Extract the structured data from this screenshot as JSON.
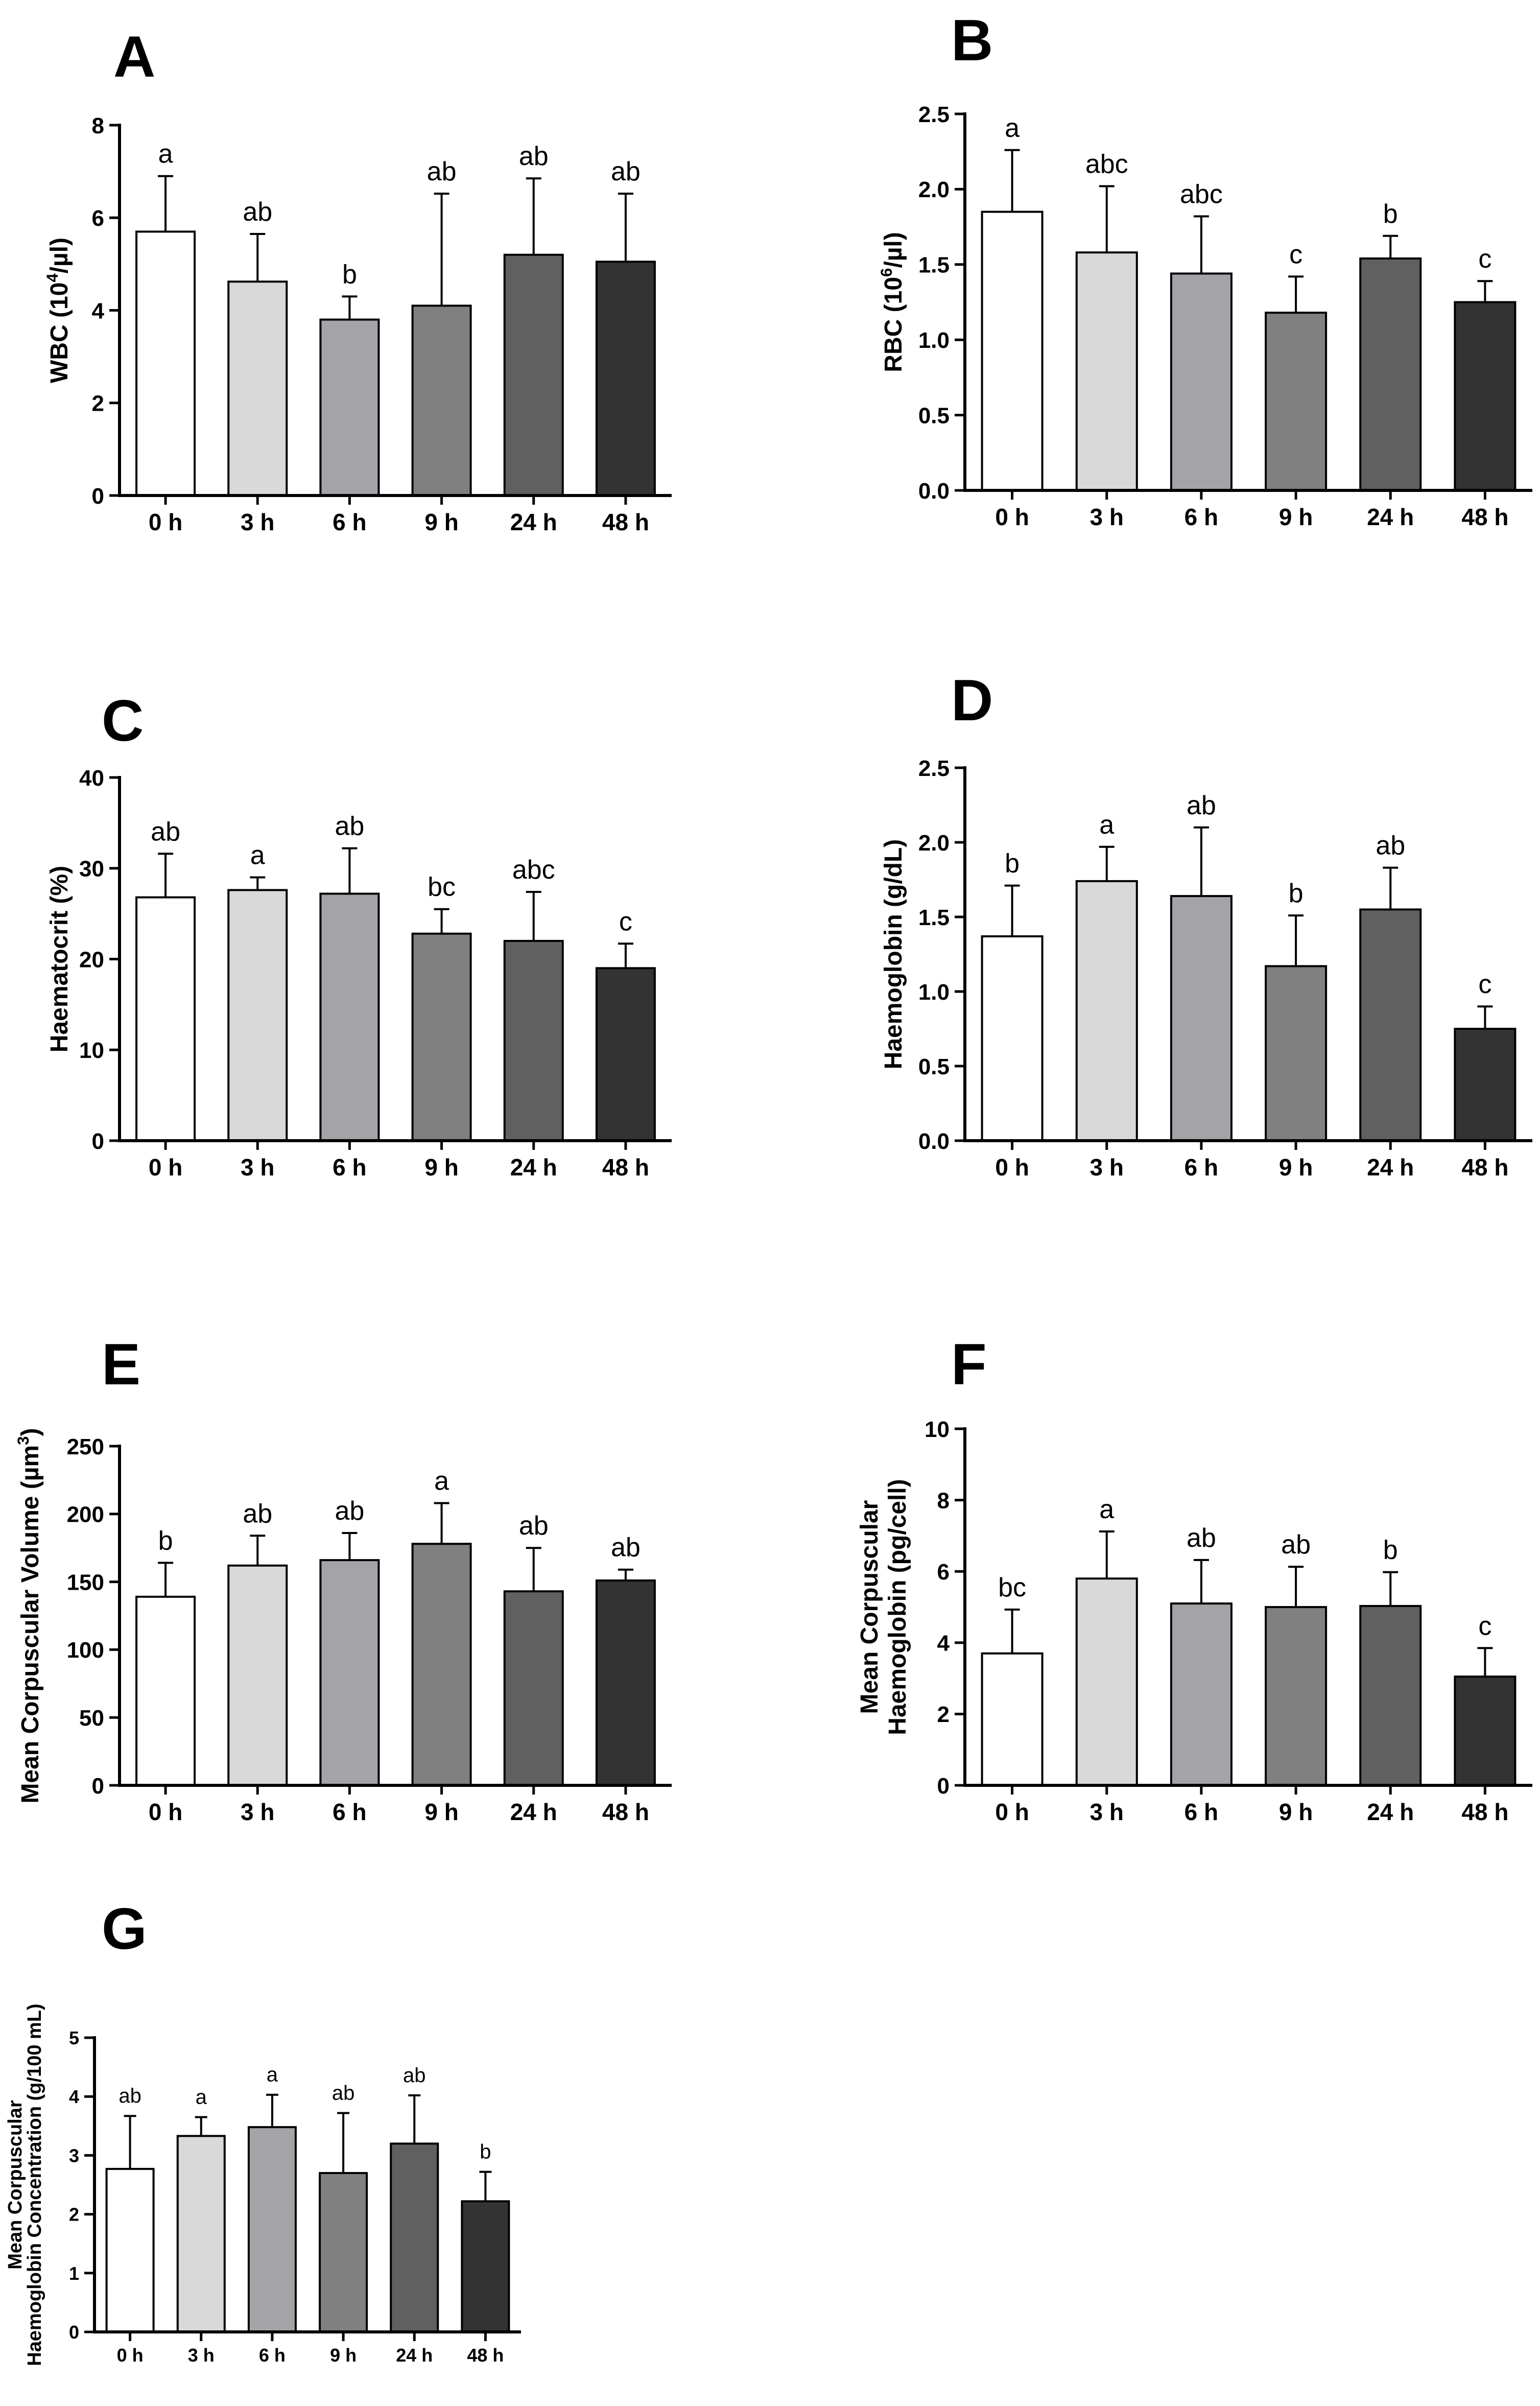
{
  "figure": {
    "categories": [
      "0 h",
      "3 h",
      "6 h",
      "9 h",
      "24 h",
      "48 h"
    ],
    "bar_colors": [
      "#ffffff",
      "#d9d9d9",
      "#a3a3a8",
      "#808080",
      "#606060",
      "#333333"
    ],
    "outline_color": "#000000"
  },
  "chart_data": [
    {
      "panel": "A",
      "type": "bar",
      "ylabel": "WBC (10",
      "ylabel_sup": "4",
      "ylabel_tail": "/µl)",
      "categories": [
        "0 h",
        "3 h",
        "6 h",
        "9 h",
        "24 h",
        "48 h"
      ],
      "values": [
        5.7,
        4.62,
        3.8,
        4.1,
        5.2,
        5.05
      ],
      "errors": [
        1.2,
        1.03,
        0.5,
        2.42,
        1.65,
        1.47
      ],
      "significance": [
        "a",
        "ab",
        "b",
        "ab",
        "ab",
        "ab"
      ],
      "ylim": [
        0,
        8
      ],
      "yticks": [
        "0",
        "2",
        "4",
        "6",
        "8"
      ],
      "ytick_values": [
        0,
        2,
        4,
        6,
        8
      ]
    },
    {
      "panel": "B",
      "type": "bar",
      "ylabel": "RBC (10",
      "ylabel_sup": "6",
      "ylabel_tail": "/µl)",
      "categories": [
        "0 h",
        "3 h",
        "6 h",
        "9 h",
        "24 h",
        "48 h"
      ],
      "values": [
        1.85,
        1.58,
        1.44,
        1.18,
        1.54,
        1.25
      ],
      "errors": [
        0.41,
        0.44,
        0.38,
        0.24,
        0.15,
        0.14
      ],
      "significance": [
        "a",
        "abc",
        "abc",
        "c",
        "b",
        "c"
      ],
      "ylim": [
        0,
        2.5
      ],
      "yticks": [
        "0.0",
        "0.5",
        "1.0",
        "1.5",
        "2.0",
        "2.5"
      ],
      "ytick_values": [
        0,
        0.5,
        1.0,
        1.5,
        2.0,
        2.5
      ]
    },
    {
      "panel": "C",
      "type": "bar",
      "ylabel": "Haematocrit (%)",
      "categories": [
        "0 h",
        "3 h",
        "6 h",
        "9 h",
        "24 h",
        "48 h"
      ],
      "values": [
        26.8,
        27.6,
        27.2,
        22.8,
        22.0,
        19.0
      ],
      "errors": [
        4.8,
        1.4,
        5.0,
        2.7,
        5.4,
        2.7
      ],
      "significance": [
        "ab",
        "a",
        "ab",
        "bc",
        "abc",
        "c"
      ],
      "ylim": [
        0,
        40
      ],
      "yticks": [
        "0",
        "10",
        "20",
        "30",
        "40"
      ],
      "ytick_values": [
        0,
        10,
        20,
        30,
        40
      ]
    },
    {
      "panel": "D",
      "type": "bar",
      "ylabel": "Haemoglobin (g/dL)",
      "categories": [
        "0 h",
        "3 h",
        "6 h",
        "9 h",
        "24 h",
        "48 h"
      ],
      "values": [
        1.37,
        1.74,
        1.64,
        1.17,
        1.55,
        0.75
      ],
      "errors": [
        0.34,
        0.23,
        0.46,
        0.34,
        0.28,
        0.15
      ],
      "significance": [
        "b",
        "a",
        "ab",
        "b",
        "ab",
        "c"
      ],
      "ylim": [
        0,
        2.5
      ],
      "yticks": [
        "0.0",
        "0.5",
        "1.0",
        "1.5",
        "2.0",
        "2.5"
      ],
      "ytick_values": [
        0,
        0.5,
        1.0,
        1.5,
        2.0,
        2.5
      ]
    },
    {
      "panel": "E",
      "type": "bar",
      "ylabel": "Mean Corpuscular Volume (µm",
      "ylabel_sup": "3",
      "ylabel_tail": ")",
      "categories": [
        "0 h",
        "3 h",
        "6 h",
        "9 h",
        "24 h",
        "48 h"
      ],
      "values": [
        139,
        162,
        166,
        178,
        143,
        151
      ],
      "errors": [
        25,
        22,
        20,
        30,
        32,
        8
      ],
      "significance": [
        "b",
        "ab",
        "ab",
        "a",
        "ab",
        "ab"
      ],
      "ylim": [
        0,
        250
      ],
      "yticks": [
        "0",
        "50",
        "100",
        "150",
        "200",
        "250"
      ],
      "ytick_values": [
        0,
        50,
        100,
        150,
        200,
        250
      ]
    },
    {
      "panel": "F",
      "type": "bar",
      "ylabel": "Mean Corpuscular",
      "ylabel_line2": "Haemoglobin (pg/cell)",
      "categories": [
        "0 h",
        "3 h",
        "6 h",
        "9 h",
        "24 h",
        "48 h"
      ],
      "values": [
        3.7,
        5.8,
        5.1,
        5.0,
        5.03,
        3.05
      ],
      "errors": [
        1.23,
        1.32,
        1.22,
        1.13,
        0.95,
        0.8
      ],
      "significance": [
        "bc",
        "a",
        "ab",
        "ab",
        "b",
        "c"
      ],
      "ylim": [
        0,
        10
      ],
      "yticks": [
        "0",
        "2",
        "4",
        "6",
        "8",
        "10"
      ],
      "ytick_values": [
        0,
        2,
        4,
        6,
        8,
        10
      ]
    },
    {
      "panel": "G",
      "type": "bar",
      "ylabel": "Mean Corpuscular",
      "ylabel_line2": "Haemoglobin Concentration (g/100 mL)",
      "categories": [
        "0 h",
        "3 h",
        "6 h",
        "9 h",
        "24 h",
        "48 h"
      ],
      "values": [
        2.77,
        3.33,
        3.48,
        2.7,
        3.2,
        2.22
      ],
      "errors": [
        0.9,
        0.32,
        0.55,
        1.02,
        0.82,
        0.5
      ],
      "significance": [
        "ab",
        "a",
        "a",
        "ab",
        "ab",
        "b"
      ],
      "ylim": [
        0,
        5
      ],
      "yticks": [
        "0",
        "1",
        "2",
        "3",
        "4",
        "5"
      ],
      "ytick_values": [
        0,
        1,
        2,
        3,
        4,
        5
      ]
    }
  ]
}
